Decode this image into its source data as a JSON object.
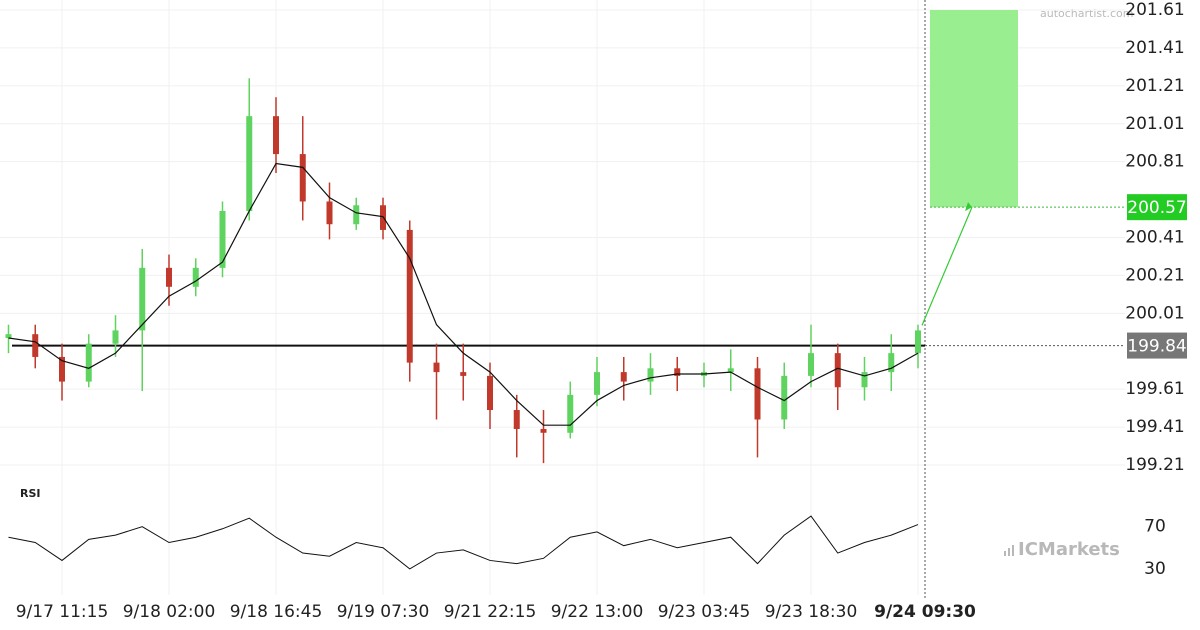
{
  "chart_data": {
    "type": "candlestick",
    "categories": [
      null,
      null,
      "9/17 11:15",
      null,
      null,
      null,
      "9/18 02:00",
      null,
      null,
      null,
      "9/18 16:45",
      null,
      null,
      null,
      "9/19 07:30",
      null,
      null,
      null,
      "9/21 22:15",
      null,
      null,
      null,
      "9/22 13:00",
      null,
      null,
      null,
      "9/23 03:45",
      null,
      null,
      null,
      "9/23 18:30",
      null,
      null,
      null,
      "9/24 09:30"
    ],
    "open": [
      199.88,
      199.9,
      199.78,
      199.65,
      199.85,
      199.92,
      200.25,
      200.15,
      200.25,
      200.55,
      201.05,
      200.85,
      200.6,
      200.48,
      200.58,
      200.45,
      199.75,
      199.7,
      199.68,
      199.5,
      199.4,
      199.38,
      199.58,
      199.7,
      199.65,
      199.72,
      199.68,
      199.7,
      199.72,
      199.45,
      199.68,
      199.8,
      199.62,
      199.7,
      199.8
    ],
    "high": [
      199.95,
      199.95,
      199.85,
      199.9,
      200.0,
      200.35,
      200.32,
      200.3,
      200.6,
      201.25,
      201.15,
      201.05,
      200.7,
      200.62,
      200.62,
      200.5,
      199.85,
      199.85,
      199.75,
      199.58,
      199.5,
      199.65,
      199.78,
      199.78,
      199.8,
      199.78,
      199.75,
      199.82,
      199.78,
      199.75,
      199.95,
      199.85,
      199.78,
      199.9,
      199.95
    ],
    "low": [
      199.8,
      199.72,
      199.55,
      199.62,
      199.78,
      199.6,
      200.05,
      200.1,
      200.2,
      200.5,
      200.75,
      200.5,
      200.4,
      200.45,
      200.4,
      199.65,
      199.45,
      199.55,
      199.4,
      199.25,
      199.22,
      199.35,
      199.52,
      199.55,
      199.58,
      199.6,
      199.62,
      199.6,
      199.25,
      199.4,
      199.62,
      199.5,
      199.55,
      199.6,
      199.72
    ],
    "close": [
      199.9,
      199.78,
      199.65,
      199.85,
      199.92,
      200.25,
      200.15,
      200.25,
      200.55,
      201.05,
      200.85,
      200.6,
      200.48,
      200.58,
      200.45,
      199.75,
      199.7,
      199.68,
      199.5,
      199.4,
      199.38,
      199.58,
      199.7,
      199.65,
      199.72,
      199.68,
      199.7,
      199.72,
      199.45,
      199.68,
      199.8,
      199.62,
      199.7,
      199.8,
      199.92
    ],
    "up_color": "#5fd35f",
    "down_color": "#c0392b",
    "ma": {
      "color": "#111111",
      "values": [
        199.88,
        199.86,
        199.76,
        199.72,
        199.8,
        199.95,
        200.1,
        200.18,
        200.28,
        200.55,
        200.8,
        200.78,
        200.62,
        200.54,
        200.52,
        200.3,
        199.95,
        199.8,
        199.7,
        199.55,
        199.42,
        199.42,
        199.55,
        199.63,
        199.67,
        199.69,
        199.69,
        199.7,
        199.62,
        199.55,
        199.65,
        199.72,
        199.68,
        199.72,
        199.8
      ]
    },
    "ylim": [
      199.21,
      201.61
    ],
    "yticks": [
      199.21,
      199.41,
      199.61,
      200.01,
      200.21,
      200.41,
      200.81,
      201.01,
      201.21,
      201.41,
      201.61
    ],
    "grid": true,
    "level": 199.84,
    "target": 200.57,
    "target_color": "#99ef90",
    "rsi": {
      "label": "RSI",
      "ylim": [
        10,
        100
      ],
      "yticks": [
        30,
        70
      ],
      "values": [
        60,
        55,
        38,
        58,
        62,
        70,
        55,
        60,
        68,
        78,
        60,
        45,
        42,
        55,
        50,
        30,
        45,
        48,
        38,
        35,
        40,
        60,
        65,
        52,
        58,
        50,
        55,
        60,
        35,
        62,
        80,
        45,
        55,
        62,
        72
      ]
    },
    "watermarks": [
      "autochartist.com",
      "ICMarkets"
    ]
  }
}
